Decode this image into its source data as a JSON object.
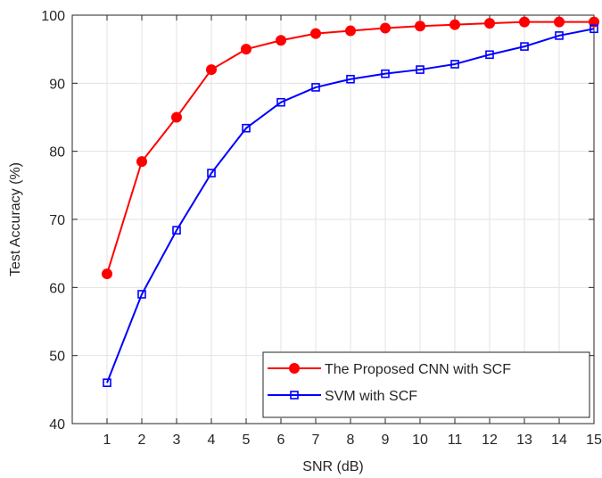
{
  "chart_data": {
    "type": "line",
    "title": "",
    "xlabel": "SNR (dB)",
    "ylabel": "Test Accuracy (%)",
    "x": [
      1,
      2,
      3,
      4,
      5,
      6,
      7,
      8,
      9,
      10,
      11,
      12,
      13,
      14,
      15
    ],
    "xlim": [
      0,
      15
    ],
    "ylim": [
      40,
      100
    ],
    "xticks": [
      1,
      2,
      3,
      4,
      5,
      6,
      7,
      8,
      9,
      10,
      11,
      12,
      13,
      14,
      15
    ],
    "yticks": [
      40,
      50,
      60,
      70,
      80,
      90,
      100
    ],
    "grid": true,
    "legend_position": "bottom-right",
    "series": [
      {
        "name": "The Proposed CNN with SCF",
        "color": "#ff0000",
        "marker": "filled-circle",
        "values": [
          62.0,
          78.5,
          85.0,
          92.0,
          95.0,
          96.3,
          97.3,
          97.7,
          98.1,
          98.4,
          98.6,
          98.8,
          99.0,
          99.0,
          99.0
        ]
      },
      {
        "name": "SVM with SCF",
        "color": "#0000ff",
        "marker": "hollow-square",
        "values": [
          46.0,
          59.0,
          68.4,
          76.8,
          83.4,
          87.2,
          89.4,
          90.6,
          91.4,
          92.0,
          92.8,
          94.2,
          95.4,
          97.0,
          98.0
        ]
      }
    ]
  }
}
